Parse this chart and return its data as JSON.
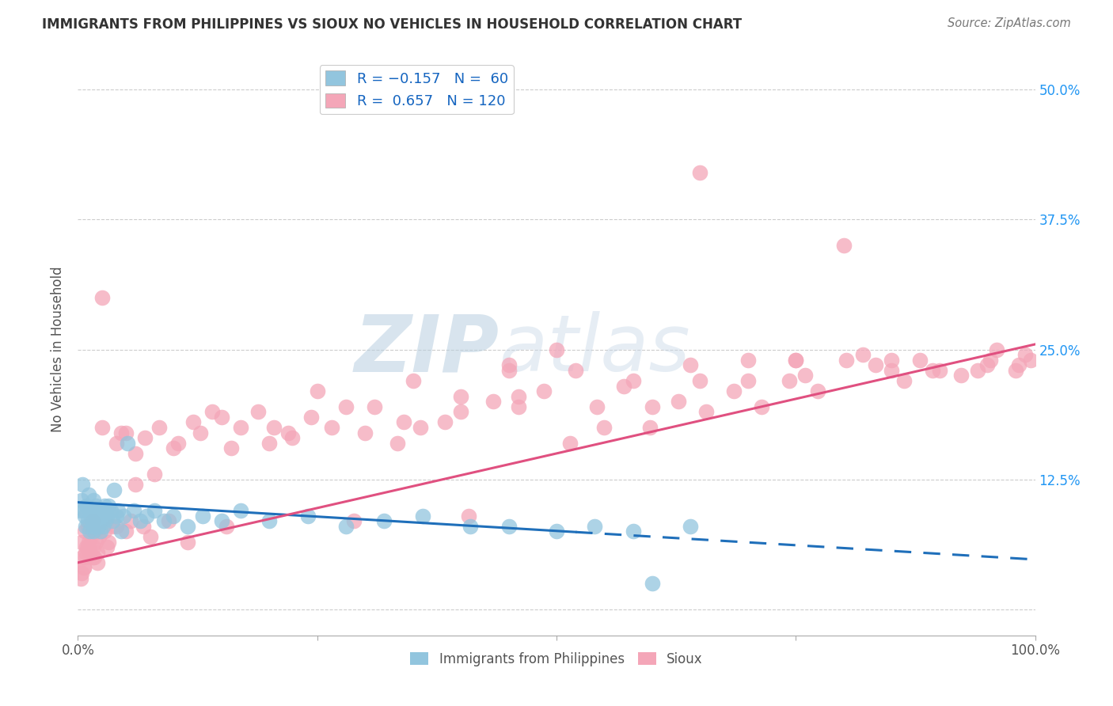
{
  "title": "IMMIGRANTS FROM PHILIPPINES VS SIOUX NO VEHICLES IN HOUSEHOLD CORRELATION CHART",
  "source": "Source: ZipAtlas.com",
  "ylabel": "No Vehicles in Household",
  "yticks": [
    0.0,
    0.125,
    0.25,
    0.375,
    0.5
  ],
  "color_blue": "#92c5de",
  "color_pink": "#f4a6b8",
  "color_blue_line": "#1f6fba",
  "color_pink_line": "#e05080",
  "watermark_zip": "ZIP",
  "watermark_atlas": "atlas",
  "blue_line_y_start": 0.103,
  "blue_line_y_end": 0.048,
  "pink_line_y_start": 0.045,
  "pink_line_y_end": 0.255,
  "xlim": [
    0.0,
    1.0
  ],
  "ylim": [
    -0.025,
    0.525
  ],
  "blue_x": [
    0.003,
    0.004,
    0.005,
    0.006,
    0.007,
    0.008,
    0.009,
    0.01,
    0.011,
    0.012,
    0.013,
    0.014,
    0.015,
    0.016,
    0.016,
    0.017,
    0.018,
    0.019,
    0.02,
    0.021,
    0.022,
    0.023,
    0.024,
    0.025,
    0.026,
    0.027,
    0.028,
    0.029,
    0.03,
    0.032,
    0.034,
    0.036,
    0.038,
    0.04,
    0.042,
    0.045,
    0.048,
    0.052,
    0.058,
    0.065,
    0.072,
    0.08,
    0.09,
    0.1,
    0.115,
    0.13,
    0.15,
    0.17,
    0.2,
    0.24,
    0.28,
    0.32,
    0.36,
    0.41,
    0.45,
    0.5,
    0.54,
    0.58,
    0.6,
    0.64
  ],
  "blue_y": [
    0.095,
    0.105,
    0.12,
    0.095,
    0.09,
    0.08,
    0.1,
    0.085,
    0.11,
    0.075,
    0.095,
    0.09,
    0.08,
    0.105,
    0.075,
    0.095,
    0.085,
    0.1,
    0.09,
    0.08,
    0.095,
    0.085,
    0.075,
    0.09,
    0.08,
    0.095,
    0.1,
    0.085,
    0.09,
    0.1,
    0.095,
    0.085,
    0.115,
    0.09,
    0.095,
    0.075,
    0.09,
    0.16,
    0.095,
    0.085,
    0.09,
    0.095,
    0.085,
    0.09,
    0.08,
    0.09,
    0.085,
    0.095,
    0.085,
    0.09,
    0.08,
    0.085,
    0.09,
    0.08,
    0.08,
    0.075,
    0.08,
    0.075,
    0.025,
    0.08
  ],
  "pink_x": [
    0.003,
    0.004,
    0.005,
    0.006,
    0.007,
    0.008,
    0.009,
    0.01,
    0.011,
    0.012,
    0.013,
    0.014,
    0.015,
    0.016,
    0.017,
    0.018,
    0.019,
    0.02,
    0.022,
    0.025,
    0.028,
    0.032,
    0.036,
    0.04,
    0.045,
    0.05,
    0.055,
    0.06,
    0.068,
    0.076,
    0.085,
    0.095,
    0.105,
    0.115,
    0.128,
    0.14,
    0.155,
    0.17,
    0.188,
    0.205,
    0.224,
    0.244,
    0.265,
    0.288,
    0.31,
    0.334,
    0.358,
    0.383,
    0.408,
    0.434,
    0.46,
    0.487,
    0.514,
    0.542,
    0.57,
    0.598,
    0.627,
    0.656,
    0.685,
    0.714,
    0.743,
    0.773,
    0.803,
    0.833,
    0.863,
    0.893,
    0.923,
    0.953,
    0.983,
    0.7,
    0.75,
    0.8,
    0.85,
    0.9,
    0.65,
    0.6,
    0.55,
    0.5,
    0.45,
    0.4,
    0.35,
    0.3,
    0.25,
    0.2,
    0.15,
    0.1,
    0.07,
    0.05,
    0.03,
    0.02,
    0.015,
    0.01,
    0.008,
    0.006,
    0.004,
    0.025,
    0.04,
    0.06,
    0.08,
    0.12,
    0.16,
    0.22,
    0.28,
    0.34,
    0.4,
    0.46,
    0.52,
    0.58,
    0.64,
    0.7,
    0.76,
    0.82,
    0.88,
    0.94,
    0.96,
    0.98,
    0.99,
    0.995,
    0.45,
    0.65,
    0.75,
    0.85,
    0.95
  ],
  "pink_y": [
    0.03,
    0.065,
    0.05,
    0.04,
    0.075,
    0.055,
    0.06,
    0.08,
    0.065,
    0.055,
    0.08,
    0.07,
    0.085,
    0.06,
    0.05,
    0.075,
    0.065,
    0.055,
    0.07,
    0.3,
    0.075,
    0.065,
    0.08,
    0.08,
    0.17,
    0.075,
    0.085,
    0.15,
    0.08,
    0.07,
    0.175,
    0.085,
    0.16,
    0.065,
    0.17,
    0.19,
    0.08,
    0.175,
    0.19,
    0.175,
    0.165,
    0.185,
    0.175,
    0.085,
    0.195,
    0.16,
    0.175,
    0.18,
    0.09,
    0.2,
    0.205,
    0.21,
    0.16,
    0.195,
    0.215,
    0.175,
    0.2,
    0.19,
    0.21,
    0.195,
    0.22,
    0.21,
    0.24,
    0.235,
    0.22,
    0.23,
    0.225,
    0.24,
    0.235,
    0.22,
    0.24,
    0.35,
    0.24,
    0.23,
    0.42,
    0.195,
    0.175,
    0.25,
    0.23,
    0.19,
    0.22,
    0.17,
    0.21,
    0.16,
    0.185,
    0.155,
    0.165,
    0.17,
    0.06,
    0.045,
    0.05,
    0.06,
    0.05,
    0.04,
    0.035,
    0.175,
    0.16,
    0.12,
    0.13,
    0.18,
    0.155,
    0.17,
    0.195,
    0.18,
    0.205,
    0.195,
    0.23,
    0.22,
    0.235,
    0.24,
    0.225,
    0.245,
    0.24,
    0.23,
    0.25,
    0.23,
    0.245,
    0.24,
    0.235,
    0.22,
    0.24,
    0.23,
    0.235
  ]
}
